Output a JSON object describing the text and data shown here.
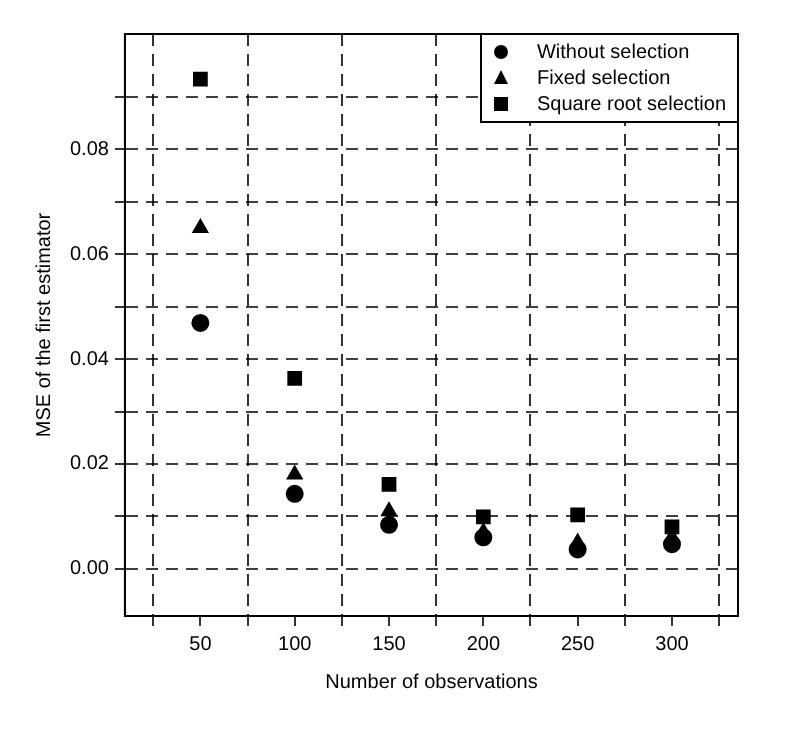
{
  "chart_data": {
    "type": "scatter",
    "xlabel": "Number of observations",
    "ylabel": "MSE of the first estimator",
    "x": [
      50,
      100,
      150,
      200,
      250,
      300
    ],
    "series": [
      {
        "name": "Without selection",
        "color": "#000000",
        "marker": "circle",
        "values": [
          0.0469,
          0.0143,
          0.0084,
          0.006,
          0.0037,
          0.0047
        ]
      },
      {
        "name": "Fixed selection",
        "color": "#000000",
        "marker": "triangle",
        "values": [
          0.065,
          0.018,
          0.011,
          0.007,
          0.005,
          0.006
        ]
      },
      {
        "name": "Square root selection",
        "color": "#000000",
        "marker": "square",
        "values": [
          0.0934,
          0.0363,
          0.0161,
          0.0099,
          0.0103,
          0.008
        ]
      }
    ],
    "xlim": [
      10,
      335
    ],
    "xticks": [
      {
        "value": 25,
        "label": null
      },
      50,
      {
        "value": 75,
        "label": null
      },
      100,
      {
        "value": 125,
        "label": null
      },
      150,
      {
        "value": 175,
        "label": null
      },
      200,
      {
        "value": 225,
        "label": null
      },
      250,
      {
        "value": 275,
        "label": null
      },
      300,
      {
        "value": 325,
        "label": null
      }
    ],
    "ylim": [
      -0.009,
      0.102
    ],
    "yticks": [
      {
        "value": 0,
        "label": "0.00"
      },
      {
        "value": 0.01,
        "label": null
      },
      {
        "value": 0.02,
        "label": "0.02"
      },
      {
        "value": 0.03,
        "label": null
      },
      {
        "value": 0.04,
        "label": "0.04"
      },
      {
        "value": 0.05,
        "label": null
      },
      {
        "value": 0.06,
        "label": "0.06"
      },
      {
        "value": 0.07,
        "label": null
      },
      {
        "value": 0.08,
        "label": "0.08"
      },
      {
        "value": 0.09,
        "label": null
      }
    ],
    "grid": true,
    "legend": "top right"
  }
}
